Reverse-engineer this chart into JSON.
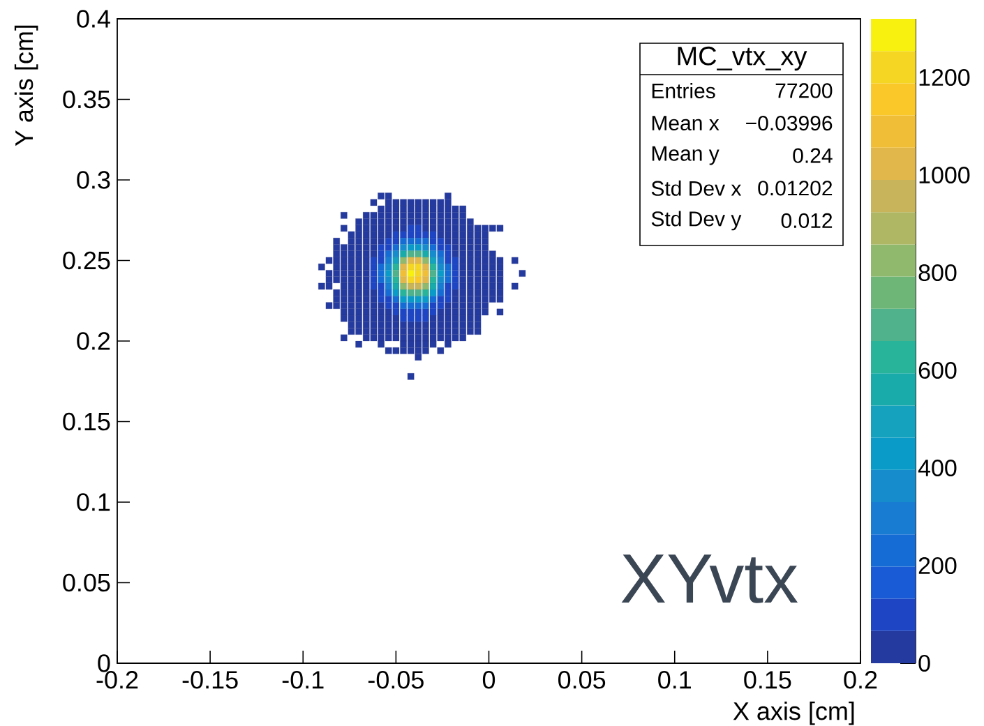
{
  "chart_data": {
    "type": "scatter",
    "title": "MC_vtx_xy",
    "xlabel": "X axis [cm]",
    "ylabel": "Y axis [cm]",
    "annotations": [
      "Entries",
      "77200",
      "Mean x",
      "−0.03996",
      "Mean y",
      "0.24",
      "Std Dev x",
      "0.01202",
      "Std Dev y",
      "0.012",
      "XYvtx"
    ],
    "xlim": [
      -0.2,
      0.2
    ],
    "ylim": [
      0,
      0.4
    ],
    "xticks": [
      -0.2,
      -0.15,
      -0.1,
      -0.05,
      0,
      0.05,
      0.1,
      0.15,
      0.2
    ],
    "yticks": [
      0,
      0.05,
      0.1,
      0.15,
      0.2,
      0.25,
      0.3,
      0.35,
      0.4
    ],
    "clim": [
      0,
      1320
    ],
    "cticks": [
      0,
      200,
      400,
      600,
      800,
      1000,
      1200
    ],
    "marker": "square",
    "series": [
      {
        "x": [
          -0.058,
          -0.054,
          -0.022
        ],
        "values": [
          0.29,
          0.29,
          0.29
        ],
        "cvalues": [
          30,
          30,
          30
        ]
      },
      {
        "x": [
          -0.062,
          -0.054,
          -0.05,
          -0.046,
          -0.042,
          -0.038,
          -0.034,
          -0.03,
          -0.026,
          -0.022
        ],
        "values": [
          0.286,
          0.286,
          0.286,
          0.286,
          0.286,
          0.286,
          0.286,
          0.286,
          0.286,
          0.286
        ],
        "cvalues": [
          30,
          30,
          30,
          30,
          30,
          30,
          30,
          30,
          30,
          30
        ]
      },
      {
        "x": [
          -0.058,
          -0.054,
          -0.05,
          -0.046,
          -0.042,
          -0.038,
          -0.034,
          -0.03,
          -0.026,
          -0.022,
          -0.018,
          -0.014
        ],
        "values": [
          0.282,
          0.282,
          0.282,
          0.282,
          0.282,
          0.282,
          0.282,
          0.282,
          0.282,
          0.282,
          0.282,
          0.282
        ],
        "cvalues": [
          30,
          30,
          30,
          30,
          30,
          30,
          30,
          30,
          30,
          30,
          30,
          30
        ]
      },
      {
        "x": [
          -0.078,
          -0.066,
          -0.062,
          -0.058,
          -0.054,
          -0.05,
          -0.046,
          -0.042,
          -0.038,
          -0.034,
          -0.03,
          -0.026,
          -0.022,
          -0.018,
          -0.014
        ],
        "values": [
          0.278,
          0.278,
          0.278,
          0.278,
          0.278,
          0.278,
          0.278,
          0.278,
          0.278,
          0.278,
          0.278,
          0.278,
          0.278,
          0.278,
          0.278
        ],
        "cvalues": [
          30,
          30,
          30,
          30,
          30,
          30,
          30,
          30,
          30,
          30,
          30,
          30,
          30,
          30,
          30
        ]
      },
      {
        "x": [
          -0.07,
          -0.066,
          -0.062,
          -0.058,
          -0.054,
          -0.05,
          -0.046,
          -0.042,
          -0.038,
          -0.034,
          -0.03,
          -0.026,
          -0.022,
          -0.018,
          -0.014,
          -0.01
        ],
        "values": [
          0.274,
          0.274,
          0.274,
          0.274,
          0.274,
          0.274,
          0.274,
          0.274,
          0.274,
          0.274,
          0.274,
          0.274,
          0.274,
          0.274,
          0.274,
          0.274
        ],
        "cvalues": [
          30,
          30,
          30,
          30,
          30,
          30,
          30,
          30,
          30,
          30,
          30,
          30,
          30,
          30,
          30,
          30
        ]
      },
      {
        "x": [
          -0.078,
          -0.07,
          -0.066,
          -0.062,
          -0.058,
          -0.054,
          -0.05,
          -0.046,
          -0.034,
          -0.03,
          -0.026,
          -0.022,
          -0.018,
          -0.014,
          -0.01,
          -0.006,
          -0.002,
          0.002,
          0.006
        ],
        "values": [
          0.27,
          0.27,
          0.27,
          0.27,
          0.27,
          0.27,
          0.27,
          0.27,
          0.27,
          0.27,
          0.27,
          0.27,
          0.27,
          0.27,
          0.27,
          0.27,
          0.27,
          0.27,
          0.27
        ],
        "cvalues": [
          30,
          30,
          30,
          30,
          30,
          30,
          30,
          30,
          30,
          30,
          30,
          30,
          30,
          30,
          30,
          30,
          30,
          30,
          30
        ]
      },
      {
        "x": [
          -0.074,
          -0.07,
          -0.066,
          -0.062,
          -0.058,
          -0.054,
          -0.026,
          -0.022,
          -0.018,
          -0.014,
          -0.01,
          -0.006,
          -0.002
        ],
        "values": [
          0.266,
          0.266,
          0.266,
          0.266,
          0.266,
          0.266,
          0.266,
          0.266,
          0.266,
          0.266,
          0.266,
          0.266,
          0.266
        ],
        "cvalues": [
          30,
          30,
          30,
          30,
          30,
          30,
          30,
          30,
          30,
          30,
          30,
          30,
          30
        ]
      },
      {
        "x": [
          -0.082,
          -0.074,
          -0.07,
          -0.066,
          -0.062,
          -0.058,
          -0.022,
          -0.018,
          -0.014,
          -0.01,
          -0.006,
          -0.002
        ],
        "values": [
          0.262,
          0.262,
          0.262,
          0.262,
          0.262,
          0.262,
          0.262,
          0.262,
          0.262,
          0.262,
          0.262,
          0.262
        ],
        "cvalues": [
          30,
          30,
          30,
          30,
          30,
          30,
          30,
          30,
          30,
          30,
          30,
          30
        ]
      },
      {
        "x": [
          -0.082,
          -0.078,
          -0.074,
          -0.07,
          -0.066,
          -0.062,
          -0.018,
          -0.014,
          -0.01,
          -0.006,
          -0.002
        ],
        "values": [
          0.258,
          0.258,
          0.258,
          0.258,
          0.258,
          0.258,
          0.258,
          0.258,
          0.258,
          0.258,
          0.258
        ],
        "cvalues": [
          30,
          30,
          30,
          30,
          30,
          30,
          30,
          30,
          30,
          30,
          30
        ]
      },
      {
        "x": [
          -0.082,
          -0.078,
          -0.074,
          -0.07,
          -0.066,
          -0.062,
          -0.018,
          -0.014,
          -0.01,
          -0.006,
          -0.002,
          0.002
        ],
        "values": [
          0.254,
          0.254,
          0.254,
          0.254,
          0.254,
          0.254,
          0.254,
          0.254,
          0.254,
          0.254,
          0.254,
          0.254
        ],
        "cvalues": [
          30,
          30,
          30,
          30,
          30,
          30,
          30,
          30,
          30,
          30,
          30,
          30
        ]
      },
      {
        "x": [
          -0.086,
          -0.082,
          -0.078,
          -0.074,
          -0.07,
          -0.066,
          -0.014,
          -0.01,
          -0.006,
          -0.002,
          0.002,
          0.006,
          0.014
        ],
        "values": [
          0.25,
          0.25,
          0.25,
          0.25,
          0.25,
          0.25,
          0.25,
          0.25,
          0.25,
          0.25,
          0.25,
          0.25,
          0.25
        ],
        "cvalues": [
          30,
          30,
          30,
          30,
          30,
          30,
          30,
          30,
          30,
          30,
          30,
          30,
          30
        ]
      },
      {
        "x": [
          -0.09,
          -0.082,
          -0.078,
          -0.074,
          -0.07,
          -0.066,
          -0.014,
          -0.01,
          -0.006,
          -0.002,
          0.002,
          0.006
        ],
        "values": [
          0.246,
          0.246,
          0.246,
          0.246,
          0.246,
          0.246,
          0.246,
          0.246,
          0.246,
          0.246,
          0.246,
          0.246
        ],
        "cvalues": [
          30,
          30,
          30,
          30,
          30,
          30,
          30,
          30,
          30,
          30,
          30,
          30
        ]
      },
      {
        "x": [
          -0.086,
          -0.082,
          -0.078,
          -0.074,
          -0.07,
          -0.066,
          -0.014,
          -0.01,
          -0.006,
          -0.002,
          0.002,
          0.006,
          0.018
        ],
        "values": [
          0.242,
          0.242,
          0.242,
          0.242,
          0.242,
          0.242,
          0.242,
          0.242,
          0.242,
          0.242,
          0.242,
          0.242,
          0.242
        ],
        "cvalues": [
          30,
          30,
          30,
          30,
          30,
          30,
          30,
          30,
          30,
          30,
          30,
          30,
          30
        ]
      },
      {
        "x": [
          -0.086,
          -0.082,
          -0.078,
          -0.074,
          -0.07,
          -0.066,
          -0.014,
          -0.01,
          -0.006,
          -0.002,
          0.002,
          0.006
        ],
        "values": [
          0.238,
          0.238,
          0.238,
          0.238,
          0.238,
          0.238,
          0.238,
          0.238,
          0.238,
          0.238,
          0.238,
          0.238
        ],
        "cvalues": [
          30,
          30,
          30,
          30,
          30,
          30,
          30,
          30,
          30,
          30,
          30,
          30
        ]
      },
      {
        "x": [
          -0.09,
          -0.086,
          -0.078,
          -0.074,
          -0.07,
          -0.066,
          -0.014,
          -0.01,
          -0.006,
          -0.002,
          0.002,
          0.006,
          0.014
        ],
        "values": [
          0.234,
          0.234,
          0.234,
          0.234,
          0.234,
          0.234,
          0.234,
          0.234,
          0.234,
          0.234,
          0.234,
          0.234,
          0.234
        ],
        "cvalues": [
          30,
          30,
          30,
          30,
          30,
          30,
          30,
          30,
          30,
          30,
          30,
          30,
          30
        ]
      },
      {
        "x": [
          -0.082,
          -0.078,
          -0.074,
          -0.07,
          -0.066,
          -0.062,
          -0.018,
          -0.014,
          -0.01,
          -0.006,
          -0.002,
          0.002,
          0.006
        ],
        "values": [
          0.23,
          0.23,
          0.23,
          0.23,
          0.23,
          0.23,
          0.23,
          0.23,
          0.23,
          0.23,
          0.23,
          0.23,
          0.23
        ],
        "cvalues": [
          30,
          30,
          30,
          30,
          30,
          30,
          30,
          30,
          30,
          30,
          30,
          30,
          30
        ]
      },
      {
        "x": [
          -0.082,
          -0.078,
          -0.074,
          -0.07,
          -0.066,
          -0.062,
          -0.018,
          -0.014,
          -0.01,
          -0.006,
          -0.002,
          0.002,
          0.006
        ],
        "values": [
          0.226,
          0.226,
          0.226,
          0.226,
          0.226,
          0.226,
          0.226,
          0.226,
          0.226,
          0.226,
          0.226,
          0.226,
          0.226
        ],
        "cvalues": [
          30,
          30,
          30,
          30,
          30,
          30,
          30,
          30,
          30,
          30,
          30,
          30,
          30
        ]
      },
      {
        "x": [
          -0.086,
          -0.082,
          -0.078,
          -0.074,
          -0.07,
          -0.066,
          -0.062,
          -0.058,
          -0.022,
          -0.018,
          -0.014,
          -0.01,
          -0.006,
          -0.002
        ],
        "values": [
          0.222,
          0.222,
          0.222,
          0.222,
          0.222,
          0.222,
          0.222,
          0.222,
          0.222,
          0.222,
          0.222,
          0.222,
          0.222,
          0.222
        ],
        "cvalues": [
          30,
          30,
          30,
          30,
          30,
          30,
          30,
          30,
          30,
          30,
          30,
          30,
          30,
          30
        ]
      },
      {
        "x": [
          -0.078,
          -0.074,
          -0.07,
          -0.066,
          -0.062,
          -0.058,
          -0.054,
          -0.026,
          -0.022,
          -0.018,
          -0.014,
          -0.01,
          -0.006,
          -0.002,
          0.006
        ],
        "values": [
          0.218,
          0.218,
          0.218,
          0.218,
          0.218,
          0.218,
          0.218,
          0.218,
          0.218,
          0.218,
          0.218,
          0.218,
          0.218,
          0.218,
          0.218
        ],
        "cvalues": [
          30,
          30,
          30,
          30,
          30,
          30,
          30,
          30,
          30,
          30,
          30,
          30,
          30,
          30,
          30
        ]
      },
      {
        "x": [
          -0.078,
          -0.074,
          -0.07,
          -0.066,
          -0.062,
          -0.058,
          -0.054,
          -0.05,
          -0.03,
          -0.026,
          -0.022,
          -0.018,
          -0.014,
          -0.01,
          -0.006
        ],
        "values": [
          0.214,
          0.214,
          0.214,
          0.214,
          0.214,
          0.214,
          0.214,
          0.214,
          0.214,
          0.214,
          0.214,
          0.214,
          0.214,
          0.214,
          0.214
        ],
        "cvalues": [
          30,
          30,
          30,
          30,
          30,
          30,
          30,
          30,
          30,
          30,
          30,
          30,
          30,
          30,
          30
        ]
      },
      {
        "x": [
          -0.074,
          -0.07,
          -0.066,
          -0.062,
          -0.058,
          -0.054,
          -0.05,
          -0.046,
          -0.042,
          -0.038,
          -0.034,
          -0.03,
          -0.026,
          -0.022,
          -0.018,
          -0.014,
          -0.01,
          -0.006
        ],
        "values": [
          0.21,
          0.21,
          0.21,
          0.21,
          0.21,
          0.21,
          0.21,
          0.21,
          0.21,
          0.21,
          0.21,
          0.21,
          0.21,
          0.21,
          0.21,
          0.21,
          0.21,
          0.21
        ],
        "cvalues": [
          30,
          30,
          30,
          30,
          30,
          30,
          30,
          30,
          30,
          30,
          30,
          30,
          30,
          30,
          30,
          30,
          30,
          30
        ]
      },
      {
        "x": [
          -0.074,
          -0.07,
          -0.066,
          -0.062,
          -0.058,
          -0.054,
          -0.05,
          -0.046,
          -0.042,
          -0.038,
          -0.034,
          -0.03,
          -0.026,
          -0.022,
          -0.018,
          -0.014,
          -0.01,
          -0.006
        ],
        "values": [
          0.206,
          0.206,
          0.206,
          0.206,
          0.206,
          0.206,
          0.206,
          0.206,
          0.206,
          0.206,
          0.206,
          0.206,
          0.206,
          0.206,
          0.206,
          0.206,
          0.206,
          0.206
        ],
        "cvalues": [
          30,
          30,
          30,
          30,
          30,
          30,
          30,
          30,
          30,
          30,
          30,
          30,
          30,
          30,
          30,
          30,
          30,
          30
        ]
      },
      {
        "x": [
          -0.078,
          -0.066,
          -0.062,
          -0.058,
          -0.054,
          -0.05,
          -0.046,
          -0.042,
          -0.038,
          -0.034,
          -0.03,
          -0.026,
          -0.022,
          -0.018,
          -0.014
        ],
        "values": [
          0.202,
          0.202,
          0.202,
          0.202,
          0.202,
          0.202,
          0.202,
          0.202,
          0.202,
          0.202,
          0.202,
          0.202,
          0.202,
          0.202,
          0.202
        ],
        "cvalues": [
          30,
          30,
          30,
          30,
          30,
          30,
          30,
          30,
          30,
          30,
          30,
          30,
          30,
          30,
          30
        ]
      },
      {
        "x": [
          -0.07,
          -0.058,
          -0.046,
          -0.042,
          -0.038,
          -0.034,
          -0.03,
          -0.022
        ],
        "values": [
          0.198,
          0.198,
          0.198,
          0.198,
          0.198,
          0.198,
          0.198,
          0.198
        ],
        "cvalues": [
          30,
          30,
          30,
          30,
          30,
          30,
          30,
          30
        ]
      },
      {
        "x": [
          -0.054,
          -0.05,
          -0.046,
          -0.042,
          -0.038,
          -0.034,
          -0.026
        ],
        "values": [
          0.194,
          0.194,
          0.194,
          0.194,
          0.194,
          0.194,
          0.194
        ],
        "cvalues": [
          30,
          30,
          30,
          30,
          30,
          30,
          30
        ]
      },
      {
        "x": [
          -0.038
        ],
        "values": [
          0.19
        ],
        "cvalues": [
          30
        ]
      },
      {
        "x": [
          -0.042
        ],
        "values": [
          0.178
        ],
        "cvalues": [
          30
        ]
      },
      {
        "x": [
          -0.042,
          -0.038,
          -0.05,
          -0.03,
          -0.054,
          -0.026,
          -0.058,
          -0.022,
          -0.062,
          -0.018,
          -0.062,
          -0.018,
          -0.062,
          -0.018,
          -0.062,
          -0.018,
          -0.062,
          -0.018,
          -0.058,
          -0.022,
          -0.054,
          -0.026,
          -0.05,
          -0.03,
          -0.046,
          -0.042,
          -0.038,
          -0.034
        ],
        "values": [
          0.27,
          0.27,
          0.266,
          0.266,
          0.262,
          0.262,
          0.258,
          0.258,
          0.25,
          0.25,
          0.246,
          0.246,
          0.242,
          0.242,
          0.238,
          0.238,
          0.234,
          0.234,
          0.226,
          0.226,
          0.222,
          0.222,
          0.218,
          0.218,
          0.214,
          0.214,
          0.214,
          0.214
        ],
        "cvalues": [
          80,
          80,
          80,
          80,
          80,
          80,
          80,
          80,
          80,
          80,
          80,
          80,
          80,
          80,
          80,
          80,
          80,
          80,
          80,
          80,
          80,
          80,
          80,
          80,
          80,
          80,
          80,
          80
        ]
      },
      {
        "x": [
          -0.046,
          -0.042,
          -0.038,
          -0.034,
          -0.058,
          -0.022,
          -0.058,
          -0.022,
          -0.046,
          -0.034
        ],
        "values": [
          0.266,
          0.266,
          0.266,
          0.266,
          0.254,
          0.254,
          0.23,
          0.23,
          0.218,
          0.218
        ],
        "cvalues": [
          100,
          100,
          100,
          100,
          100,
          100,
          100,
          100,
          100,
          100
        ]
      },
      {
        "x": [
          -0.05,
          -0.03,
          -0.054,
          -0.026,
          -0.058,
          -0.022,
          -0.058,
          -0.022,
          -0.054,
          -0.026,
          -0.05,
          -0.03,
          -0.042,
          -0.038
        ],
        "values": [
          0.262,
          0.262,
          0.258,
          0.258,
          0.25,
          0.25,
          0.234,
          0.234,
          0.226,
          0.226,
          0.222,
          0.222,
          0.218,
          0.218
        ],
        "cvalues": [
          130,
          130,
          130,
          130,
          130,
          130,
          130,
          130,
          130,
          130,
          130,
          130,
          130,
          130
        ]
      },
      {
        "x": [
          -0.046,
          -0.034,
          -0.054,
          -0.026,
          -0.058,
          -0.022,
          -0.058,
          -0.022,
          -0.058,
          -0.022,
          -0.046,
          -0.034
        ],
        "values": [
          0.262,
          0.262,
          0.254,
          0.254,
          0.246,
          0.246,
          0.242,
          0.242,
          0.238,
          0.238,
          0.222,
          0.222
        ],
        "cvalues": [
          200,
          200,
          200,
          200,
          200,
          200,
          200,
          200,
          200,
          200,
          200,
          200
        ]
      },
      {
        "x": [
          -0.042,
          -0.038,
          -0.05,
          -0.03,
          -0.054,
          -0.026,
          -0.05,
          -0.03,
          -0.042,
          -0.038
        ],
        "values": [
          0.262,
          0.262,
          0.258,
          0.258,
          0.23,
          0.23,
          0.226,
          0.226,
          0.222,
          0.222
        ],
        "cvalues": [
          250,
          250,
          250,
          250,
          250,
          250,
          250,
          250,
          250,
          250
        ]
      },
      {
        "x": [
          -0.054,
          -0.026,
          -0.054,
          -0.026
        ],
        "values": [
          0.25,
          0.25,
          0.234,
          0.234
        ],
        "cvalues": [
          300,
          300,
          300,
          300
        ]
      },
      {
        "x": [
          -0.046,
          -0.034,
          -0.05,
          -0.03,
          -0.054,
          -0.026,
          -0.054,
          -0.026
        ],
        "values": [
          0.258,
          0.258,
          0.254,
          0.254,
          0.246,
          0.246,
          0.238,
          0.238
        ],
        "cvalues": [
          350,
          350,
          350,
          350,
          350,
          350,
          350,
          350
        ]
      },
      {
        "x": [
          -0.054,
          -0.026,
          -0.05,
          -0.03,
          -0.046,
          -0.034
        ],
        "values": [
          0.242,
          0.242,
          0.23,
          0.23,
          0.226,
          0.226
        ],
        "cvalues": [
          400,
          400,
          400,
          400,
          400,
          400
        ]
      },
      {
        "x": [
          -0.042,
          -0.038
        ],
        "values": [
          0.258,
          0.258
        ],
        "cvalues": [
          420,
          420
        ]
      },
      {
        "x": [
          -0.042,
          -0.038
        ],
        "values": [
          0.226,
          0.226
        ],
        "cvalues": [
          450,
          450
        ]
      },
      {
        "x": [
          -0.05,
          -0.03
        ],
        "values": [
          0.25,
          0.25
        ],
        "cvalues": [
          500,
          500
        ]
      },
      {
        "x": [
          -0.046,
          -0.034,
          -0.05,
          -0.03
        ],
        "values": [
          0.254,
          0.254,
          0.234,
          0.234
        ],
        "cvalues": [
          550,
          550,
          550,
          550
        ]
      },
      {
        "x": [
          -0.046,
          -0.034
        ],
        "values": [
          0.23,
          0.23
        ],
        "cvalues": [
          600,
          600
        ]
      },
      {
        "x": [
          -0.05,
          -0.03,
          -0.05,
          -0.03
        ],
        "values": [
          0.246,
          0.246,
          0.238,
          0.238
        ],
        "cvalues": [
          650,
          650,
          650,
          650
        ]
      },
      {
        "x": [
          -0.042,
          -0.038,
          -0.05,
          -0.03,
          -0.042,
          -0.038
        ],
        "values": [
          0.254,
          0.254,
          0.242,
          0.242,
          0.23,
          0.23
        ],
        "cvalues": [
          700,
          700,
          700,
          700,
          700,
          700
        ]
      },
      {
        "x": [
          -0.046,
          -0.034,
          -0.046,
          -0.034
        ],
        "values": [
          0.25,
          0.25,
          0.234,
          0.234
        ],
        "cvalues": [
          800,
          800,
          800,
          800
        ]
      },
      {
        "x": [
          -0.042,
          -0.038
        ],
        "values": [
          0.234,
          0.234
        ],
        "cvalues": [
          950,
          950
        ]
      },
      {
        "x": [
          -0.042,
          -0.038,
          -0.046,
          -0.034,
          -0.046,
          -0.034
        ],
        "values": [
          0.25,
          0.25,
          0.246,
          0.246,
          0.238,
          0.238
        ],
        "cvalues": [
          1000,
          1000,
          1000,
          1000,
          1000,
          1000
        ]
      },
      {
        "x": [
          -0.046,
          -0.034
        ],
        "values": [
          0.242,
          0.242
        ],
        "cvalues": [
          1100,
          1100
        ]
      },
      {
        "x": [
          -0.038
        ],
        "values": [
          0.238
        ],
        "cvalues": [
          1150
        ]
      },
      {
        "x": [
          -0.042,
          -0.038,
          -0.042
        ],
        "values": [
          0.246,
          0.246,
          0.238
        ],
        "cvalues": [
          1200,
          1200,
          1200
        ]
      },
      {
        "x": [
          -0.038
        ],
        "values": [
          0.242
        ],
        "cvalues": [
          1250
        ]
      },
      {
        "x": [
          -0.042
        ],
        "values": [
          0.242
        ],
        "cvalues": [
          1300
        ]
      }
    ]
  }
}
